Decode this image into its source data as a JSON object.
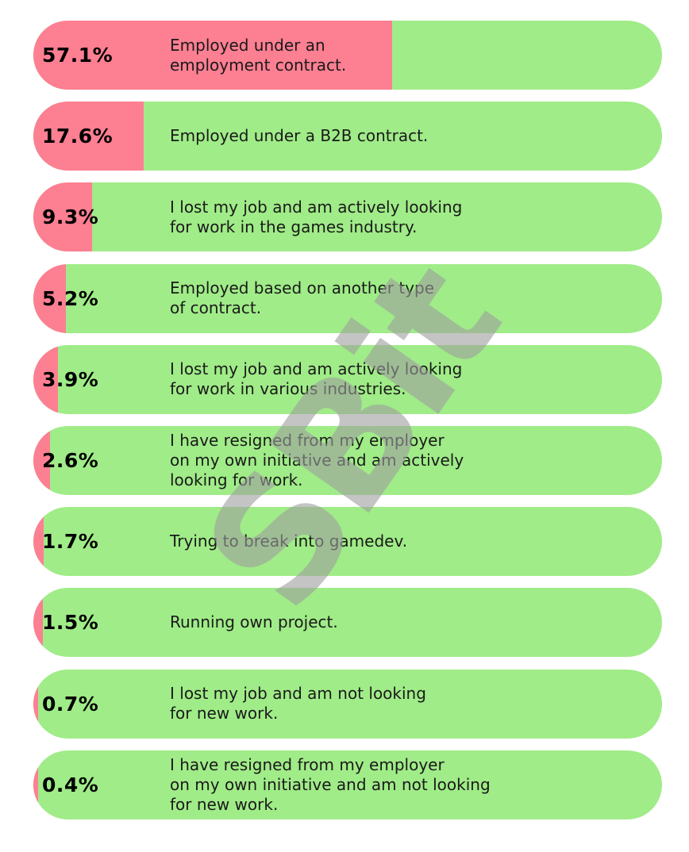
{
  "chart_data": {
    "type": "bar",
    "orientation": "horizontal",
    "unit": "%",
    "categories": [
      "Employed under an\nemployment contract.",
      "Employed under a B2B contract.",
      "I lost my job and am actively looking\nfor work in the games industry.",
      "Employed based on another type\nof contract.",
      "I lost my job and am actively looking\nfor work in various industries.",
      "I have resigned from my employer\non my own initiative and am actively\nlooking for work.",
      "Trying to break into gamedev.",
      "Running own project.",
      "I lost my job and am not looking\nfor new work.",
      "I have resigned from my employer\non my own initiative and am not looking\nfor new work."
    ],
    "values": [
      57.1,
      17.6,
      9.3,
      5.2,
      3.9,
      2.6,
      1.7,
      1.5,
      0.7,
      0.4
    ],
    "value_labels": [
      "57.1%",
      "17.6%",
      "9.3%",
      "5.2%",
      "3.9%",
      "2.6%",
      "1.7%",
      "1.5%",
      "0.7%",
      "0.4%"
    ],
    "xlim": [
      0,
      100
    ],
    "colors": {
      "fill": "#fd7f92",
      "track": "#a0ec88"
    }
  },
  "watermark": {
    "text": "SBit",
    "color": "#9e9e9e"
  }
}
